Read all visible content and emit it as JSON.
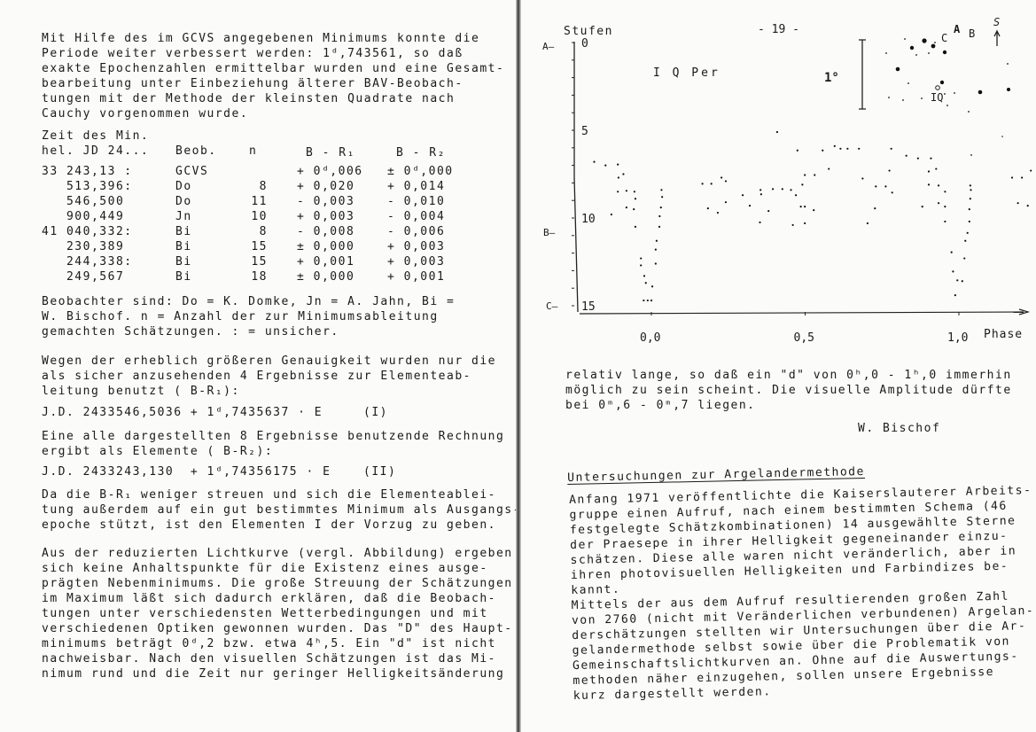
{
  "left": {
    "intro": [
      "Mit Hilfe des im GCVS angegebenen Minimums konnte die",
      "Periode weiter verbessert werden: 1ᵈ,743561, so daß",
      "exakte Epochenzahlen ermittelbar wurden und eine Gesamt-",
      "bearbeitung unter Einbeziehung älterer BAV-Beobach-",
      "tungen mit der Methode der kleinsten Quadrate nach",
      "Cauchy vorgenommen wurde."
    ],
    "table": {
      "header_line1": "Zeit des Min.",
      "headers": [
        "hel. JD 24...",
        "Beob.",
        "n",
        "B - R₁",
        "B - R₂"
      ],
      "rows": [
        [
          "33 243,13 :",
          "GCVS",
          "",
          "+ 0ᵈ,006",
          "± 0ᵈ,000"
        ],
        [
          "   513,396:",
          "Do",
          "8",
          "+ 0,020",
          "+ 0,014"
        ],
        [
          "   546,500",
          "Do",
          "11",
          "- 0,003",
          "- 0,010"
        ],
        [
          "   900,449",
          "Jn",
          "10",
          "+ 0,003",
          "- 0,004"
        ],
        [
          "41 040,332:",
          "Bi",
          "8",
          "- 0,008",
          "- 0,006"
        ],
        [
          "   230,389",
          "Bi",
          "15",
          "± 0,000",
          "+ 0,003"
        ],
        [
          "   244,338:",
          "Bi",
          "15",
          "+ 0,001",
          "+ 0,003"
        ],
        [
          "   249,567",
          "Bi",
          "18",
          "± 0,000",
          "+ 0,001"
        ]
      ]
    },
    "observers": [
      "Beobachter sind: Do = K. Domke, Jn = A. Jahn, Bi =",
      "W. Bischof. n = Anzahl der zur Minimumsableitung",
      "gemachten Schätzungen. : = unsicher."
    ],
    "accuracy": [
      "Wegen der erheblich größeren Genauigkeit wurden nur die",
      "als sicher anzusehenden 4 Ergebnisse zur Elementeab-",
      "leitung benutzt ( B-R₁):"
    ],
    "equation1": {
      "formula": "J.D. 2433546,5036 + 1ᵈ,7435637 · E",
      "label": "(I)"
    },
    "all_results": [
      "Eine alle dargestellten 8 Ergebnisse benutzende Rechnung",
      "ergibt als Elemente ( B-R₂):"
    ],
    "equation2": {
      "formula": "J.D. 2433243,130  + 1ᵈ,74356175 · E",
      "label": "(II)"
    },
    "preference": [
      "Da die B-R₁ weniger streuen und sich die Elementeablei-",
      "tung außerdem auf ein gut bestimmtes Minimum als Ausgangs-",
      "epoche stützt, ist den Elementen I der Vorzug zu geben."
    ],
    "lightcurve": [
      "Aus der reduzierten Lichtkurve (vergl. Abbildung) ergeben",
      "sich keine Anhaltspunkte für die Existenz eines ausge-",
      "prägten Nebenminimums. Die große Streuung der Schätzungen",
      "im Maximum läßt sich dadurch erklären, daß die Beobach-",
      "tungen unter verschiedensten Wetterbedingungen und mit",
      "verschiedenen Optiken gewonnen wurden. Das \"D\" des Haupt-",
      "minimums beträgt 0ᵈ,2 bzw. etwa 4ʰ,5. Ein \"d\" ist nicht",
      "nachweisbar. Nach den visuellen Schätzungen ist das Mi-",
      "nimum rund und die Zeit nur geringer Helligkeitsänderung"
    ]
  },
  "right": {
    "page_number": "- 19 -",
    "continuation": [
      "relativ lange, so daß ein \"d\" von 0ʰ,0 - 1ʰ,0 immerhin",
      "möglich zu sein scheint. Die visuelle Amplitude dürfte",
      "bei 0ᵐ,6 - 0ᵐ,7 liegen."
    ],
    "author": "W. Bischof",
    "section_title": "Untersuchungen zur Argelandermethode",
    "section_body": [
      "Anfang 1971 veröffentlichte die Kaiserslauterer Arbeits-",
      "gruppe einen Aufruf, nach einem bestimmten Schema (46",
      "festgelegte Schätzkombinationen) 14 ausgewählte Sterne",
      "der Praesepe in ihrer Helligkeit gegeneinander einzu-",
      "schätzen. Diese alle waren nicht veränderlich, aber in",
      "ihren photovisuellen Helligkeiten und Farbindizes be-",
      "kannt.",
      "Mittels der aus dem Aufruf resultierenden großen Zahl",
      "von 2760 (nicht mit Veränderlichen verbundenen) Argelan-",
      "derschätzungen stellten wir Untersuchungen über die Ar-",
      "gelandermethode selbst sowie über die Problematik von",
      "Gemeinschaftslichtkurven an. Ohne auf die Auswertungs-",
      "methoden näher einzugehen, sollen unsere Ergebnisse",
      "kurz dargestellt werden."
    ]
  },
  "chart_data": {
    "type": "scatter",
    "title": "I Q Per",
    "xlabel": "Phase",
    "ylabel": "Stufen",
    "x_ticks": [
      "0,0",
      "0,5",
      "1,0"
    ],
    "x_tick_values": [
      0,
      0.5,
      1.0
    ],
    "y_ticks": [
      "0",
      "5",
      "10",
      "15"
    ],
    "y_tick_values": [
      0,
      5,
      10,
      15
    ],
    "y_inverted": true,
    "xlim": [
      -0.25,
      1.3
    ],
    "ylim": [
      0,
      15
    ],
    "comparison_stars": [
      {
        "label": "A",
        "stufe": 0
      },
      {
        "label": "B",
        "stufe": 10.5
      },
      {
        "label": "C",
        "stufe": 15
      }
    ],
    "scale_bar_label": "1°",
    "map_labels": {
      "C": "C",
      "A": "A",
      "B": "B",
      "S": "S",
      "IQ": "IQ"
    },
    "points": [
      [
        -0.186,
        6.8
      ],
      [
        -0.149,
        7.0
      ],
      [
        -0.109,
        6.95
      ],
      [
        -0.107,
        7.7
      ],
      [
        -0.091,
        7.5
      ],
      [
        -0.109,
        8.5
      ],
      [
        -0.081,
        8.45
      ],
      [
        -0.055,
        8.5
      ],
      [
        -0.052,
        8.9
      ],
      [
        -0.081,
        9.4
      ],
      [
        -0.057,
        9.5
      ],
      [
        -0.13,
        9.8
      ],
      [
        -0.052,
        10.5
      ],
      [
        -0.034,
        12.3
      ],
      [
        -0.034,
        12.7
      ],
      [
        -0.023,
        13.3
      ],
      [
        -0.018,
        13.7
      ],
      [
        0.003,
        13.9
      ],
      [
        -0.025,
        14.7
      ],
      [
        -0.012,
        14.7
      ],
      [
        0.0,
        14.7
      ],
      [
        0.014,
        12.6
      ],
      [
        0.014,
        11.8
      ],
      [
        0.017,
        11.3
      ],
      [
        0.026,
        10.5
      ],
      [
        0.027,
        9.9
      ],
      [
        0.031,
        9.4
      ],
      [
        0.035,
        8.8
      ],
      [
        0.033,
        8.4
      ],
      [
        0.166,
        8.05
      ],
      [
        0.195,
        8.05
      ],
      [
        0.228,
        7.7
      ],
      [
        0.242,
        7.9
      ],
      [
        0.184,
        9.45
      ],
      [
        0.216,
        9.7
      ],
      [
        0.242,
        9.1
      ],
      [
        0.297,
        8.7
      ],
      [
        0.32,
        9.3
      ],
      [
        0.355,
        8.4
      ],
      [
        0.357,
        8.65
      ],
      [
        0.381,
        9.6
      ],
      [
        0.353,
        10.25
      ],
      [
        0.395,
        8.35
      ],
      [
        0.426,
        8.35
      ],
      [
        0.454,
        8.4
      ],
      [
        0.47,
        8.7
      ],
      [
        0.46,
        10.4
      ],
      [
        0.499,
        10.3
      ],
      [
        0.486,
        9.35
      ],
      [
        0.499,
        9.35
      ],
      [
        0.528,
        9.55
      ],
      [
        0.491,
        8.1
      ],
      [
        0.499,
        7.55
      ],
      [
        0.531,
        7.55
      ],
      [
        0.475,
        6.15
      ],
      [
        0.409,
        5.1
      ],
      [
        0.557,
        6.15
      ],
      [
        0.577,
        7.2
      ],
      [
        0.596,
        5.9
      ],
      [
        0.615,
        6.05
      ],
      [
        0.638,
        6.05
      ],
      [
        0.675,
        6.05
      ],
      [
        0.687,
        7.75
      ],
      [
        0.703,
        10.3
      ],
      [
        0.727,
        9.45
      ],
      [
        0.73,
        8.2
      ],
      [
        0.762,
        8.2
      ],
      [
        0.774,
        7.3
      ],
      [
        0.78,
        6.05
      ],
      [
        0.783,
        8.55
      ],
      [
        0.829,
        6.45
      ],
      [
        0.867,
        6.6
      ],
      [
        0.909,
        6.6
      ],
      [
        0.902,
        7.35
      ],
      [
        0.926,
        7.2
      ],
      [
        0.881,
        9.35
      ],
      [
        0.902,
        8.1
      ],
      [
        0.934,
        8.15
      ],
      [
        0.955,
        8.5
      ],
      [
        0.934,
        9.15
      ],
      [
        0.955,
        9.35
      ],
      [
        0.955,
        10.2
      ],
      [
        0.976,
        11.95
      ],
      [
        0.981,
        13.05
      ],
      [
        0.995,
        13.55
      ],
      [
        0.988,
        14.4
      ],
      [
        1.011,
        13.6
      ],
      [
        1.018,
        12.3
      ],
      [
        1.021,
        11.3
      ],
      [
        1.028,
        10.85
      ],
      [
        1.034,
        10.2
      ],
      [
        1.034,
        9.5
      ],
      [
        1.037,
        8.9
      ],
      [
        1.039,
        8.4
      ],
      [
        1.037,
        8.15
      ],
      [
        1.173,
        7.7
      ],
      [
        1.205,
        7.7
      ],
      [
        1.234,
        7.3
      ],
      [
        1.192,
        9.15
      ],
      [
        1.224,
        9.3
      ]
    ]
  }
}
